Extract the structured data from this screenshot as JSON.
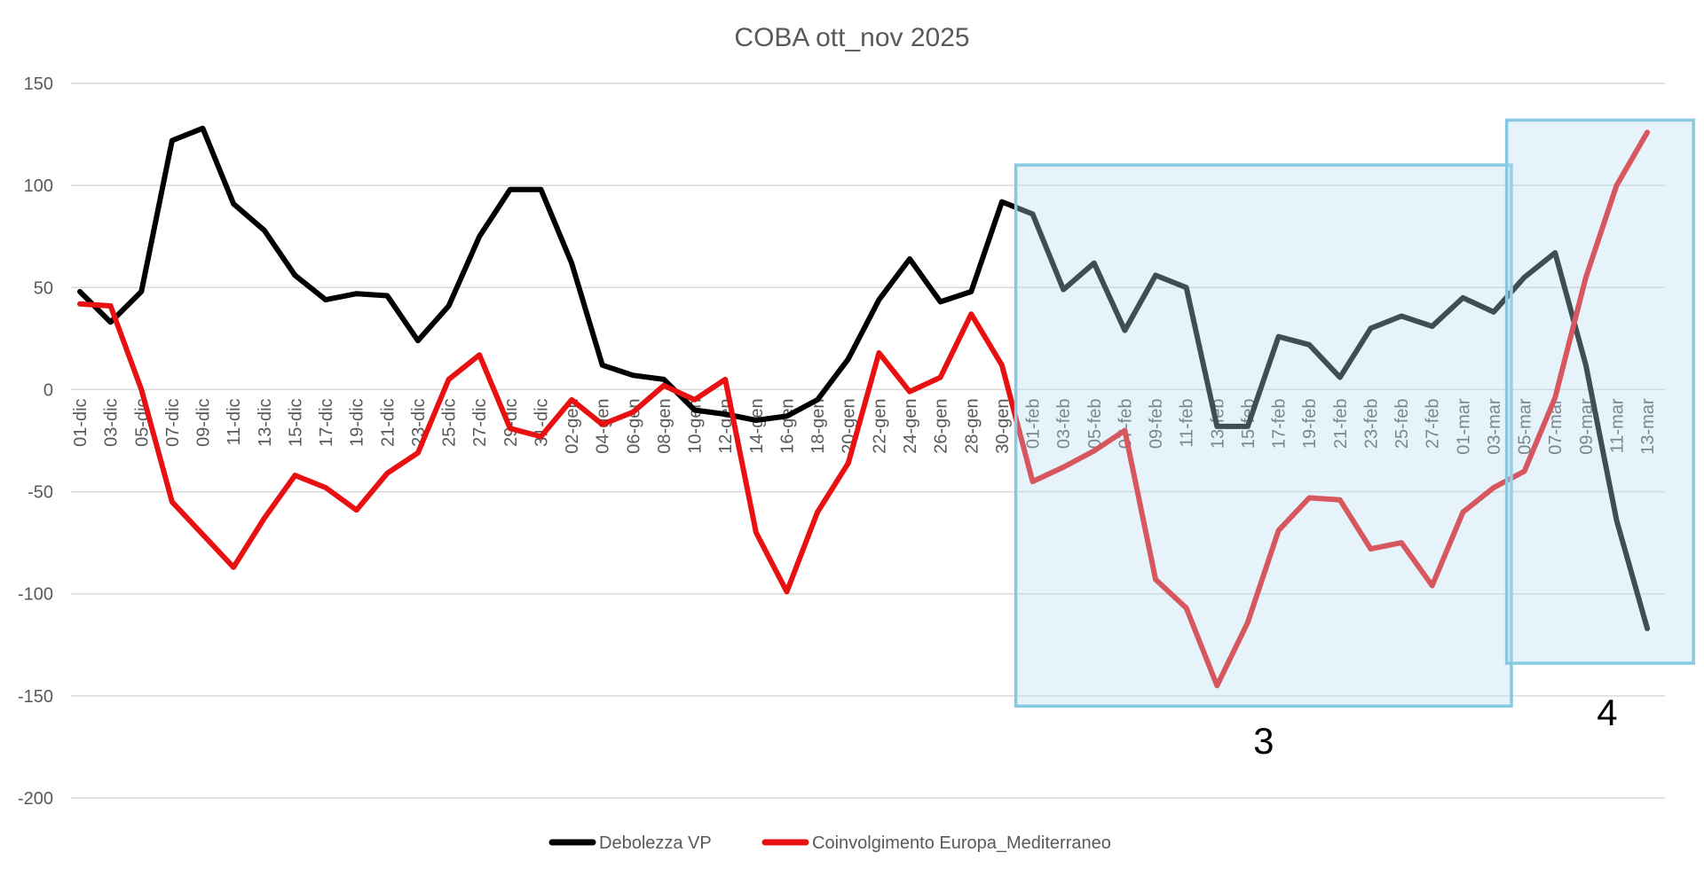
{
  "chart_data": {
    "type": "line",
    "title": "COBA ott_nov 2025",
    "ylim": [
      -200,
      150
    ],
    "yticks": [
      150,
      100,
      50,
      0,
      -50,
      -100,
      -150,
      -200
    ],
    "categories": [
      "01-dic",
      "03-dic",
      "05-dic",
      "07-dic",
      "09-dic",
      "11-dic",
      "13-dic",
      "15-dic",
      "17-dic",
      "19-dic",
      "21-dic",
      "23-dic",
      "25-dic",
      "27-dic",
      "29-dic",
      "31-dic",
      "02-gen",
      "04-gen",
      "06-gen",
      "08-gen",
      "10-gen",
      "12-gen",
      "14-gen",
      "16-gen",
      "18-gen",
      "20-gen",
      "22-gen",
      "24-gen",
      "26-gen",
      "28-gen",
      "30-gen",
      "01-feb",
      "03-feb",
      "05-feb",
      "07-feb",
      "09-feb",
      "11-feb",
      "13-feb",
      "15-feb",
      "17-feb",
      "19-feb",
      "21-feb",
      "23-feb",
      "25-feb",
      "27-feb",
      "01-mar",
      "03-mar",
      "05-mar",
      "07-mar",
      "09-mar",
      "11-mar",
      "13-mar"
    ],
    "series": [
      {
        "name": "Debolezza VP",
        "color": "#000000",
        "values": [
          48,
          33,
          48,
          122,
          128,
          91,
          78,
          56,
          44,
          47,
          46,
          24,
          41,
          75,
          98,
          98,
          62,
          12,
          7,
          5,
          -10,
          -12,
          -15,
          -13,
          -5,
          15,
          44,
          64,
          43,
          48,
          92,
          86,
          49,
          62,
          29,
          56,
          50,
          -18,
          -18,
          26,
          22,
          6,
          30,
          36,
          31,
          45,
          38,
          55,
          67,
          12,
          -64,
          -117
        ]
      },
      {
        "name": "Coinvolgimento Europa_Mediterraneo",
        "color": "#e81010",
        "values": [
          42,
          41,
          0,
          -55,
          -71,
          -87,
          -63,
          -42,
          -48,
          -59,
          -41,
          -31,
          5,
          17,
          -19,
          -23,
          -5,
          -17,
          -11,
          2,
          -5,
          5,
          -70,
          -99,
          -60,
          -36,
          18,
          -1,
          6,
          37,
          12,
          -45,
          -38,
          -30,
          -20,
          -93,
          -107,
          -145,
          -114,
          -69,
          -53,
          -54,
          -78,
          -75,
          -96,
          -60,
          -48,
          -40,
          -4,
          55,
          100,
          126
        ]
      }
    ],
    "annotations": [
      {
        "label": "3",
        "from": "01-feb",
        "to": "03-mar",
        "ymin": -155,
        "ymax": 110
      },
      {
        "label": "4",
        "from": "05-mar",
        "to": "13-mar",
        "ymin": -134,
        "ymax": 132
      }
    ]
  }
}
